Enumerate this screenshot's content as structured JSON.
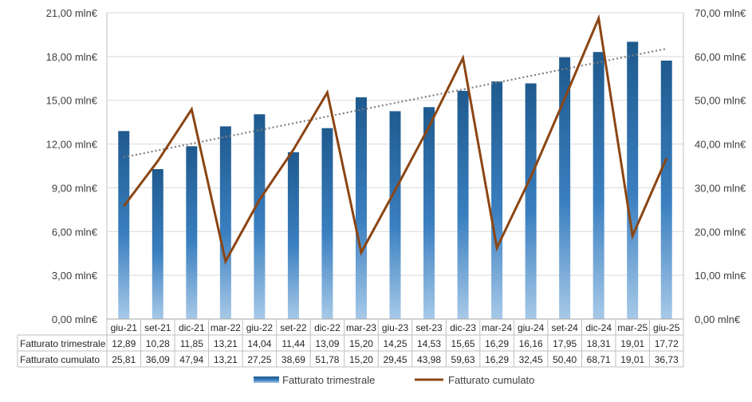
{
  "chart_data": {
    "type": "bar",
    "categories": [
      "giu-21",
      "set-21",
      "dic-21",
      "mar-22",
      "giu-22",
      "set-22",
      "dic-22",
      "mar-23",
      "giu-23",
      "set-23",
      "dic-23",
      "mar-24",
      "giu-24",
      "set-24",
      "dic-24",
      "mar-25",
      "giu-25"
    ],
    "series": [
      {
        "name": "Fatturato trimestrale",
        "type": "bar",
        "axis": "left",
        "color": "#1f5a8e",
        "values": [
          12.89,
          10.28,
          11.85,
          13.21,
          14.04,
          11.44,
          13.09,
          15.2,
          14.25,
          14.53,
          15.65,
          16.29,
          16.16,
          17.95,
          18.31,
          19.01,
          17.72
        ],
        "labels": [
          "12,89",
          "10,28",
          "11,85",
          "13,21",
          "14,04",
          "11,44",
          "13,09",
          "15,20",
          "14,25",
          "14,53",
          "15,65",
          "16,29",
          "16,16",
          "17,95",
          "18,31",
          "19,01",
          "17,72"
        ]
      },
      {
        "name": "Fatturato  cumulato",
        "type": "line",
        "axis": "right",
        "color": "#8b4513",
        "values": [
          25.81,
          36.09,
          47.94,
          13.21,
          27.25,
          38.69,
          51.78,
          15.2,
          29.45,
          43.98,
          59.63,
          16.29,
          32.45,
          50.4,
          68.71,
          19.01,
          36.73
        ],
        "labels": [
          "25,81",
          "36,09",
          "47,94",
          "13,21",
          "27,25",
          "38,69",
          "51,78",
          "15,20",
          "29,45",
          "43,98",
          "59,63",
          "16,29",
          "32,45",
          "50,40",
          "68,71",
          "19,01",
          "36,73"
        ]
      }
    ],
    "trendline": {
      "of_series": "Fatturato trimestrale",
      "type": "linear",
      "style": "dotted",
      "color": "#808080"
    },
    "y_left": {
      "ylim": [
        0,
        21
      ],
      "ticks": [
        0,
        3,
        6,
        9,
        12,
        15,
        18,
        21
      ],
      "tick_labels": [
        "0,00 mln€",
        "3,00 mln€",
        "6,00 mln€",
        "9,00 mln€",
        "12,00 mln€",
        "15,00 mln€",
        "18,00 mln€",
        "21,00 mln€"
      ]
    },
    "y_right": {
      "ylim": [
        0,
        70
      ],
      "ticks": [
        0,
        10,
        20,
        30,
        40,
        50,
        60,
        70
      ],
      "tick_labels": [
        "0,00 mln€",
        "10,00 mln€",
        "20,00 mln€",
        "30,00 mln€",
        "40,00 mln€",
        "50,00 mln€",
        "60,00 mln€",
        "70,00 mln€"
      ]
    },
    "grid": true,
    "data_table": true,
    "legend_position": "bottom",
    "title": "",
    "xlabel": "",
    "ylabel": ""
  }
}
